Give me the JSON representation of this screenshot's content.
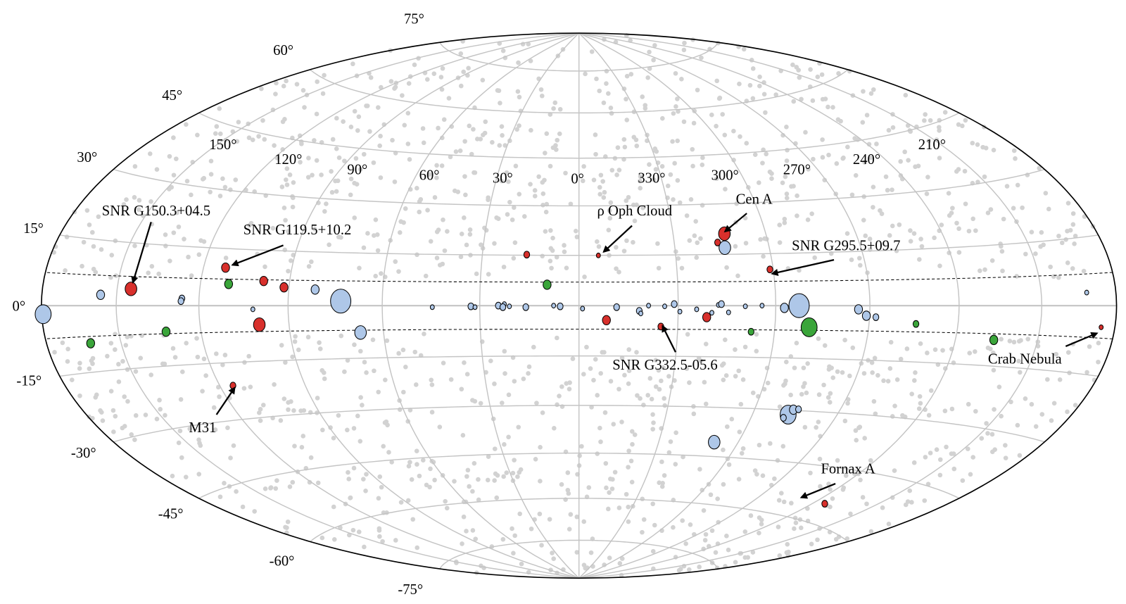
{
  "chart_data": {
    "type": "scatter",
    "projection": "all-sky (galactic), longitude increasing to the left",
    "grid": true,
    "colors": {
      "red": "#d8302c",
      "green": "#3aa53a",
      "blue": "#aec7e8",
      "background_points": "#d2d2d2",
      "grid": "#c4c4c4"
    },
    "latitude_ticks": [
      "75°",
      "60°",
      "45°",
      "30°",
      "15°",
      "0°",
      "-15°",
      "-30°",
      "-45°",
      "-60°",
      "-75°"
    ],
    "longitude_ticks": [
      "150°",
      "120°",
      "90°",
      "60°",
      "30°",
      "0°",
      "330°",
      "300°",
      "270°",
      "240°",
      "210°"
    ],
    "band_latitude_deg": 7,
    "series": [
      {
        "color": "red",
        "points": [
          {
            "l": 150.3,
            "b": 4.5,
            "size": "l"
          },
          {
            "l": 119.5,
            "b": 10.2,
            "size": "m"
          },
          {
            "l": 106.0,
            "b": 6.6,
            "size": "m"
          },
          {
            "l": 99.0,
            "b": 4.9,
            "size": "m"
          },
          {
            "l": 107.3,
            "b": -5.1,
            "size": "l"
          },
          {
            "l": 121.2,
            "b": -21.6,
            "size": "s"
          },
          {
            "l": 17.8,
            "b": 13.7,
            "size": "s"
          },
          {
            "l": 353.4,
            "b": 13.5,
            "size": "xs"
          },
          {
            "l": 350.8,
            "b": -3.9,
            "size": "m"
          },
          {
            "l": 332.5,
            "b": -5.6,
            "size": "s"
          },
          {
            "l": 317.2,
            "b": -3.1,
            "size": "m"
          },
          {
            "l": 309.5,
            "b": 19.4,
            "size": "l"
          },
          {
            "l": 312.3,
            "b": 17.0,
            "size": "s"
          },
          {
            "l": 295.5,
            "b": 9.7,
            "size": "s"
          },
          {
            "l": 240.2,
            "b": -56.7,
            "size": "s"
          },
          {
            "l": 184.6,
            "b": -5.8,
            "size": "xs"
          }
        ]
      },
      {
        "color": "green",
        "points": [
          {
            "l": 117.7,
            "b": 5.8,
            "size": "m"
          },
          {
            "l": 138.9,
            "b": -7.0,
            "size": "m"
          },
          {
            "l": 165.1,
            "b": -10.1,
            "size": "m"
          },
          {
            "l": 10.7,
            "b": 5.6,
            "size": "m"
          },
          {
            "l": 302.1,
            "b": -7.0,
            "size": "s"
          },
          {
            "l": 282.7,
            "b": -5.8,
            "size": "xl"
          },
          {
            "l": 246.9,
            "b": -4.9,
            "size": "s"
          },
          {
            "l": 220.0,
            "b": -9.2,
            "size": "m"
          }
        ]
      },
      {
        "color": "blue",
        "points": [
          {
            "l": 179.5,
            "b": -2.3,
            "size": "xl"
          },
          {
            "l": 160.3,
            "b": 2.9,
            "size": "m"
          },
          {
            "l": 133.0,
            "b": 1.9,
            "size": "s"
          },
          {
            "l": 133.3,
            "b": 1.2,
            "size": "s"
          },
          {
            "l": 109.2,
            "b": -1.0,
            "size": "xs"
          },
          {
            "l": 88.5,
            "b": 4.3,
            "size": "m"
          },
          {
            "l": 79.8,
            "b": 1.2,
            "size": "xxl"
          },
          {
            "l": 73.5,
            "b": -7.2,
            "size": "l"
          },
          {
            "l": 49.1,
            "b": -0.4,
            "size": "xs"
          },
          {
            "l": 36.2,
            "b": -0.2,
            "size": "s"
          },
          {
            "l": 34.8,
            "b": -0.4,
            "size": "xs"
          },
          {
            "l": 27.0,
            "b": 0.0,
            "size": "s"
          },
          {
            "l": 25.0,
            "b": 0.4,
            "size": "xs"
          },
          {
            "l": 25.5,
            "b": -0.4,
            "size": "s"
          },
          {
            "l": 23.3,
            "b": -0.2,
            "size": "xs"
          },
          {
            "l": 17.8,
            "b": -0.4,
            "size": "s"
          },
          {
            "l": 8.5,
            "b": 0.0,
            "size": "xs"
          },
          {
            "l": 6.3,
            "b": -0.2,
            "size": "s"
          },
          {
            "l": 358.8,
            "b": -0.8,
            "size": "xs"
          },
          {
            "l": 347.4,
            "b": -0.4,
            "size": "s"
          },
          {
            "l": 339.8,
            "b": -1.4,
            "size": "s"
          },
          {
            "l": 339.3,
            "b": -2.1,
            "size": "xs"
          },
          {
            "l": 336.7,
            "b": 0.0,
            "size": "xs"
          },
          {
            "l": 331.3,
            "b": -0.2,
            "size": "xs"
          },
          {
            "l": 328.1,
            "b": 0.4,
            "size": "s"
          },
          {
            "l": 326.2,
            "b": -1.6,
            "size": "xs"
          },
          {
            "l": 320.6,
            "b": -1.0,
            "size": "xs"
          },
          {
            "l": 315.5,
            "b": -1.9,
            "size": "xs"
          },
          {
            "l": 313.3,
            "b": 0.2,
            "size": "xs"
          },
          {
            "l": 312.3,
            "b": 0.4,
            "size": "s"
          },
          {
            "l": 309.9,
            "b": -1.8,
            "size": "xs"
          },
          {
            "l": 304.3,
            "b": -0.2,
            "size": "xs"
          },
          {
            "l": 298.7,
            "b": 0.0,
            "size": "xs"
          },
          {
            "l": 291.2,
            "b": -0.6,
            "size": "m"
          },
          {
            "l": 286.3,
            "b": 0.0,
            "size": "xxl"
          },
          {
            "l": 266.4,
            "b": -1.0,
            "size": "m"
          },
          {
            "l": 263.7,
            "b": -2.7,
            "size": "m"
          },
          {
            "l": 260.5,
            "b": -3.1,
            "size": "s"
          },
          {
            "l": 189.8,
            "b": 3.5,
            "size": "xs"
          },
          {
            "l": 310.0,
            "b": 15.6,
            "size": "l"
          },
          {
            "l": 307.7,
            "b": -37.6,
            "size": "l"
          },
          {
            "l": 283.6,
            "b": -29.7,
            "size": "xl"
          },
          {
            "l": 282.3,
            "b": -28.3,
            "size": "m"
          },
          {
            "l": 280.5,
            "b": -28.2,
            "size": "s"
          },
          {
            "l": 284.9,
            "b": -30.6,
            "size": "s"
          }
        ]
      }
    ],
    "annotations": [
      {
        "text": "SNR G150.3+04.5",
        "l": 150.3,
        "b": 4.5
      },
      {
        "text": "SNR G119.5+10.2",
        "l": 119.5,
        "b": 10.2
      },
      {
        "text": "ρ Oph Cloud",
        "l": 353.4,
        "b": 13.5
      },
      {
        "text": "Cen A",
        "l": 309.5,
        "b": 19.4
      },
      {
        "text": "SNR G295.5+09.7",
        "l": 295.5,
        "b": 9.7
      },
      {
        "text": "SNR G332.5-05.6",
        "l": 332.5,
        "b": -5.6
      },
      {
        "text": "Crab Nebula",
        "l": 184.6,
        "b": -5.8
      },
      {
        "text": "M31",
        "l": 121.2,
        "b": -21.6
      },
      {
        "text": "Fornax A",
        "l": 240.2,
        "b": -56.7
      }
    ]
  }
}
